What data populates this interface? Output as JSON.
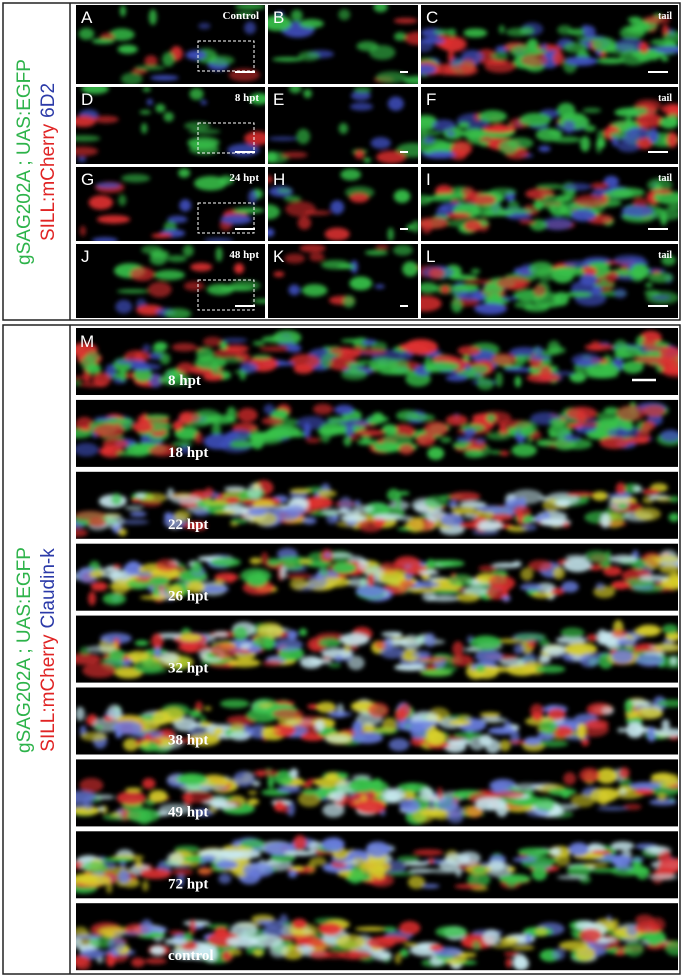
{
  "top": {
    "label_lines": [
      [
        {
          "text": "gSAG202A ; UAS:EGFP",
          "color": "#2db34a"
        }
      ],
      [
        {
          "text": "SILL:mCherry",
          "color": "#e02424"
        },
        {
          "text": "6D2",
          "color": "#2b3aa8"
        }
      ]
    ],
    "panels": [
      {
        "letter": "A",
        "caption": "Control"
      },
      {
        "letter": "B"
      },
      {
        "letter": "C",
        "caption": "tail"
      },
      {
        "letter": "D",
        "caption": "8 hpt"
      },
      {
        "letter": "E"
      },
      {
        "letter": "F",
        "caption": "tail"
      },
      {
        "letter": "G",
        "caption": "24 hpt"
      },
      {
        "letter": "H"
      },
      {
        "letter": "I",
        "caption": "tail"
      },
      {
        "letter": "J",
        "caption": "48 hpt"
      },
      {
        "letter": "K"
      },
      {
        "letter": "L",
        "caption": "tail"
      }
    ]
  },
  "bottom": {
    "label_lines": [
      [
        {
          "text": "gSAG202A ; UAS:EGFP",
          "color": "#2db34a"
        }
      ],
      [
        {
          "text": "SILL:mCherry",
          "color": "#e02424"
        },
        {
          "text": "Claudin-k",
          "color": "#2b3aa8"
        }
      ]
    ],
    "letter": "M",
    "panels": [
      {
        "caption": "8 hpt"
      },
      {
        "caption": "18 hpt"
      },
      {
        "caption": "22 hpt"
      },
      {
        "caption": "26 hpt"
      },
      {
        "caption": "32 hpt"
      },
      {
        "caption": "38 hpt"
      },
      {
        "caption": "49 hpt"
      },
      {
        "caption": "72 hpt"
      },
      {
        "caption": "control"
      }
    ]
  }
}
